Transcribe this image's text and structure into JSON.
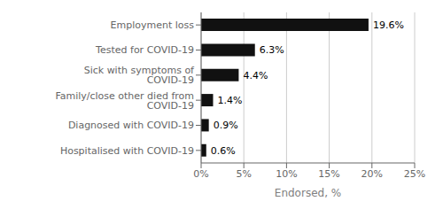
{
  "chart_data": {
    "type": "bar",
    "orientation": "horizontal",
    "categories": [
      "Hospitalised with COVID-19",
      "Diagnosed with COVID-19",
      "Family/close other died from COVID-19",
      "Sick with symptoms of COVID-19",
      "Tested for COVID-19",
      "Employment loss"
    ],
    "values": [
      0.6,
      0.9,
      1.4,
      4.4,
      6.3,
      19.6
    ],
    "value_labels": [
      "0.6%",
      "0.9%",
      "1.4%",
      "4.4%",
      "6.3%",
      "19.6%"
    ],
    "data_labels": true,
    "color": "#111111",
    "xlabel": "Endorsed, %",
    "xlim": [
      0,
      25
    ],
    "xticks": [
      {
        "value": 0,
        "label": "0%"
      },
      {
        "value": 5,
        "label": "5%"
      },
      {
        "value": 10,
        "label": "10%"
      },
      {
        "value": 15,
        "label": "15%"
      },
      {
        "value": 20,
        "label": "20%"
      },
      {
        "value": 25,
        "label": "25%"
      }
    ],
    "grid": true
  }
}
